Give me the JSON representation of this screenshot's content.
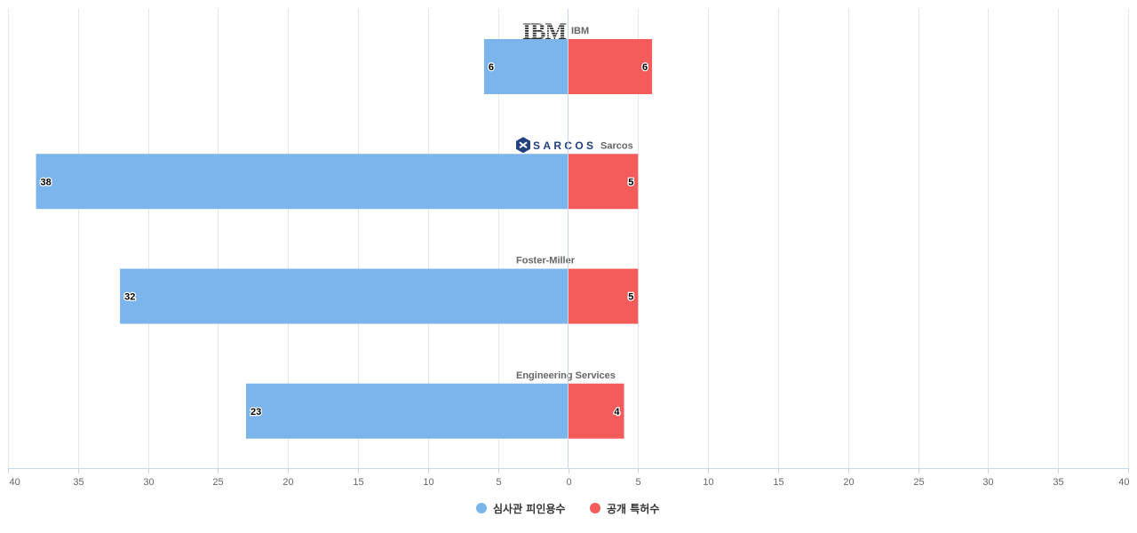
{
  "chart_data": {
    "type": "bar",
    "orientation": "horizontal-diverging",
    "categories": [
      "IBM",
      "Sarcos",
      "Foster-Miller",
      "Engineering Services"
    ],
    "logos": [
      "IBM",
      "SARCOS",
      "",
      ""
    ],
    "series": [
      {
        "name": "심사관 피인용수",
        "values": [
          6,
          38,
          32,
          23
        ],
        "color": "#7cb5ec"
      },
      {
        "name": "공개 특허수",
        "values": [
          6,
          5,
          5,
          4
        ],
        "color": "#f45b5b"
      }
    ],
    "xlim": [
      -40,
      40
    ],
    "x_ticks": [
      -40,
      -35,
      -30,
      -25,
      -20,
      -15,
      -10,
      -5,
      0,
      5,
      10,
      15,
      20,
      25,
      30,
      35,
      40
    ],
    "x_tick_labels": [
      "40",
      "35",
      "30",
      "25",
      "20",
      "15",
      "10",
      "5",
      "0",
      "5",
      "10",
      "15",
      "20",
      "25",
      "30",
      "35",
      "40"
    ],
    "grid": true,
    "legend_position": "bottom-center"
  }
}
